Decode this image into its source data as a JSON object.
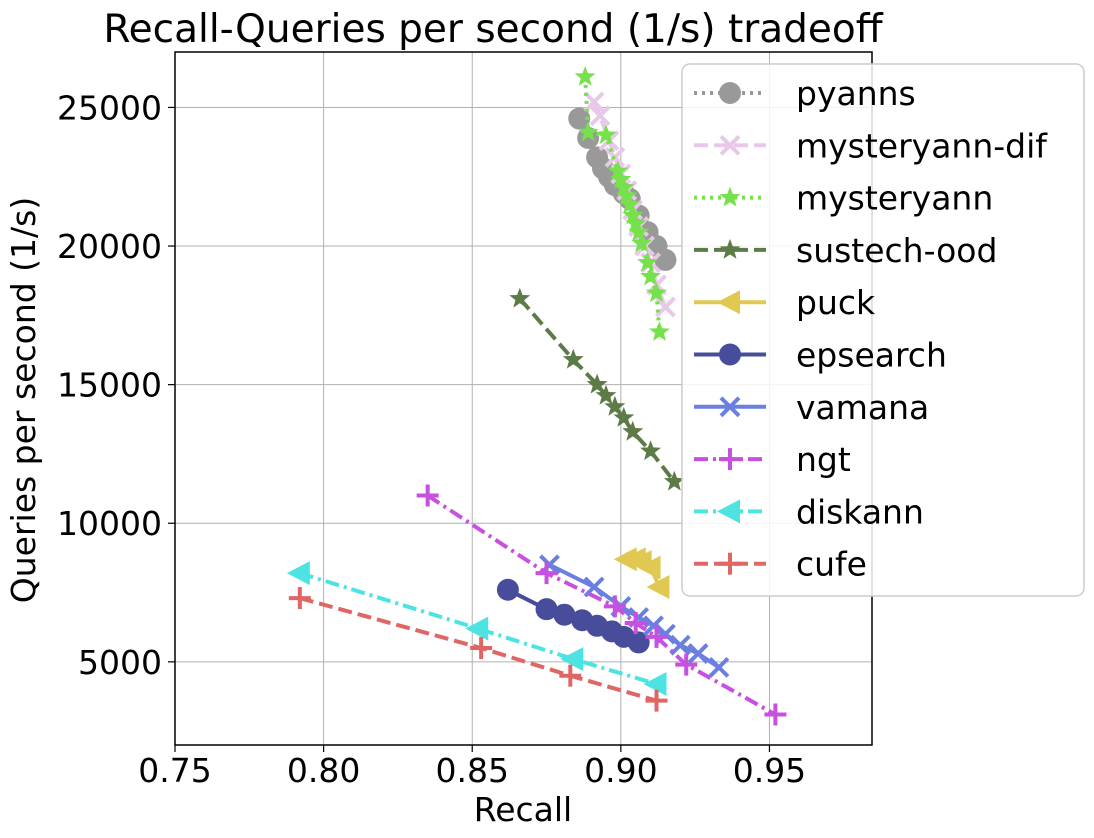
{
  "chart_data": {
    "type": "line",
    "title": "Recall-Queries per second (1/s) tradeoff",
    "xlabel": "Recall",
    "ylabel": "Queries per second (1/s)",
    "xlim": [
      0.75,
      0.9845
    ],
    "ylim": [
      2000,
      27000
    ],
    "xticks": [
      0.75,
      0.8,
      0.85,
      0.9,
      0.95
    ],
    "xtick_labels": [
      "0.75",
      "0.80",
      "0.85",
      "0.90",
      "0.95"
    ],
    "yticks": [
      5000,
      10000,
      15000,
      20000,
      25000
    ],
    "ytick_labels": [
      "5000",
      "10000",
      "15000",
      "20000",
      "25000"
    ],
    "grid": true,
    "legend_position": "upper-right",
    "series": [
      {
        "name": "pyanns",
        "color": "#999999",
        "linestyle": "dotted",
        "marker": "circle",
        "x": [
          0.886,
          0.889,
          0.892,
          0.894,
          0.896,
          0.898,
          0.901,
          0.903,
          0.906,
          0.909,
          0.912,
          0.915
        ],
        "y": [
          24600,
          23900,
          23200,
          22800,
          22500,
          22200,
          21900,
          21700,
          21100,
          20500,
          20000,
          19500
        ]
      },
      {
        "name": "mysteryann-dif",
        "color": "#e8c8e8",
        "linestyle": "dashed",
        "marker": "x",
        "x": [
          0.891,
          0.893,
          0.896,
          0.898,
          0.9,
          0.902,
          0.904,
          0.906,
          0.908,
          0.91,
          0.912,
          0.915
        ],
        "y": [
          25200,
          24700,
          23800,
          23200,
          22600,
          22000,
          21300,
          20700,
          20000,
          19400,
          18600,
          17800
        ]
      },
      {
        "name": "mysteryann",
        "color": "#77e14b",
        "linestyle": "dotted",
        "marker": "star",
        "x": [
          0.888,
          0.889,
          0.895,
          0.899,
          0.9,
          0.901,
          0.902,
          0.903,
          0.904,
          0.905,
          0.906,
          0.907,
          0.909,
          0.91,
          0.912,
          0.913
        ],
        "y": [
          26100,
          24100,
          24000,
          22700,
          22400,
          22100,
          21800,
          21500,
          21100,
          20800,
          20500,
          20100,
          19400,
          18900,
          18300,
          16900
        ]
      },
      {
        "name": "sustech-ood",
        "color": "#5d7b47",
        "linestyle": "dashed",
        "marker": "star",
        "x": [
          0.866,
          0.884,
          0.892,
          0.895,
          0.898,
          0.901,
          0.904,
          0.91,
          0.918
        ],
        "y": [
          18100,
          15900,
          15000,
          14600,
          14200,
          13800,
          13300,
          12600,
          11500
        ]
      },
      {
        "name": "puck",
        "color": "#e1c850",
        "linestyle": "solid",
        "marker": "triangle-left",
        "x": [
          0.902,
          0.905,
          0.907,
          0.91,
          0.913
        ],
        "y": [
          8700,
          8700,
          8600,
          8400,
          7700
        ]
      },
      {
        "name": "epsearch",
        "color": "#474d9a",
        "linestyle": "solid",
        "marker": "circle",
        "x": [
          0.862,
          0.875,
          0.881,
          0.887,
          0.892,
          0.897,
          0.901,
          0.906
        ],
        "y": [
          7600,
          6900,
          6700,
          6500,
          6300,
          6100,
          5900,
          5700
        ]
      },
      {
        "name": "vamana",
        "color": "#6a7fe0",
        "linestyle": "solid",
        "marker": "x",
        "x": [
          0.876,
          0.891,
          0.9,
          0.906,
          0.911,
          0.915,
          0.92,
          0.926,
          0.933
        ],
        "y": [
          8500,
          7700,
          7000,
          6600,
          6300,
          6000,
          5600,
          5300,
          4800
        ]
      },
      {
        "name": "ngt",
        "color": "#c750e0",
        "linestyle": "dashdot",
        "marker": "plus",
        "x": [
          0.835,
          0.875,
          0.898,
          0.905,
          0.912,
          0.922,
          0.952
        ],
        "y": [
          11000,
          8200,
          7000,
          6400,
          5900,
          4900,
          3100
        ]
      },
      {
        "name": "diskann",
        "color": "#4de3e3",
        "linestyle": "dashdot",
        "marker": "triangle-left",
        "x": [
          0.792,
          0.852,
          0.884,
          0.912
        ],
        "y": [
          8200,
          6200,
          5100,
          4200
        ]
      },
      {
        "name": "cufe",
        "color": "#e06666",
        "linestyle": "dashed",
        "marker": "plus",
        "x": [
          0.792,
          0.853,
          0.883,
          0.912
        ],
        "y": [
          7300,
          5500,
          4500,
          3600
        ]
      }
    ]
  }
}
